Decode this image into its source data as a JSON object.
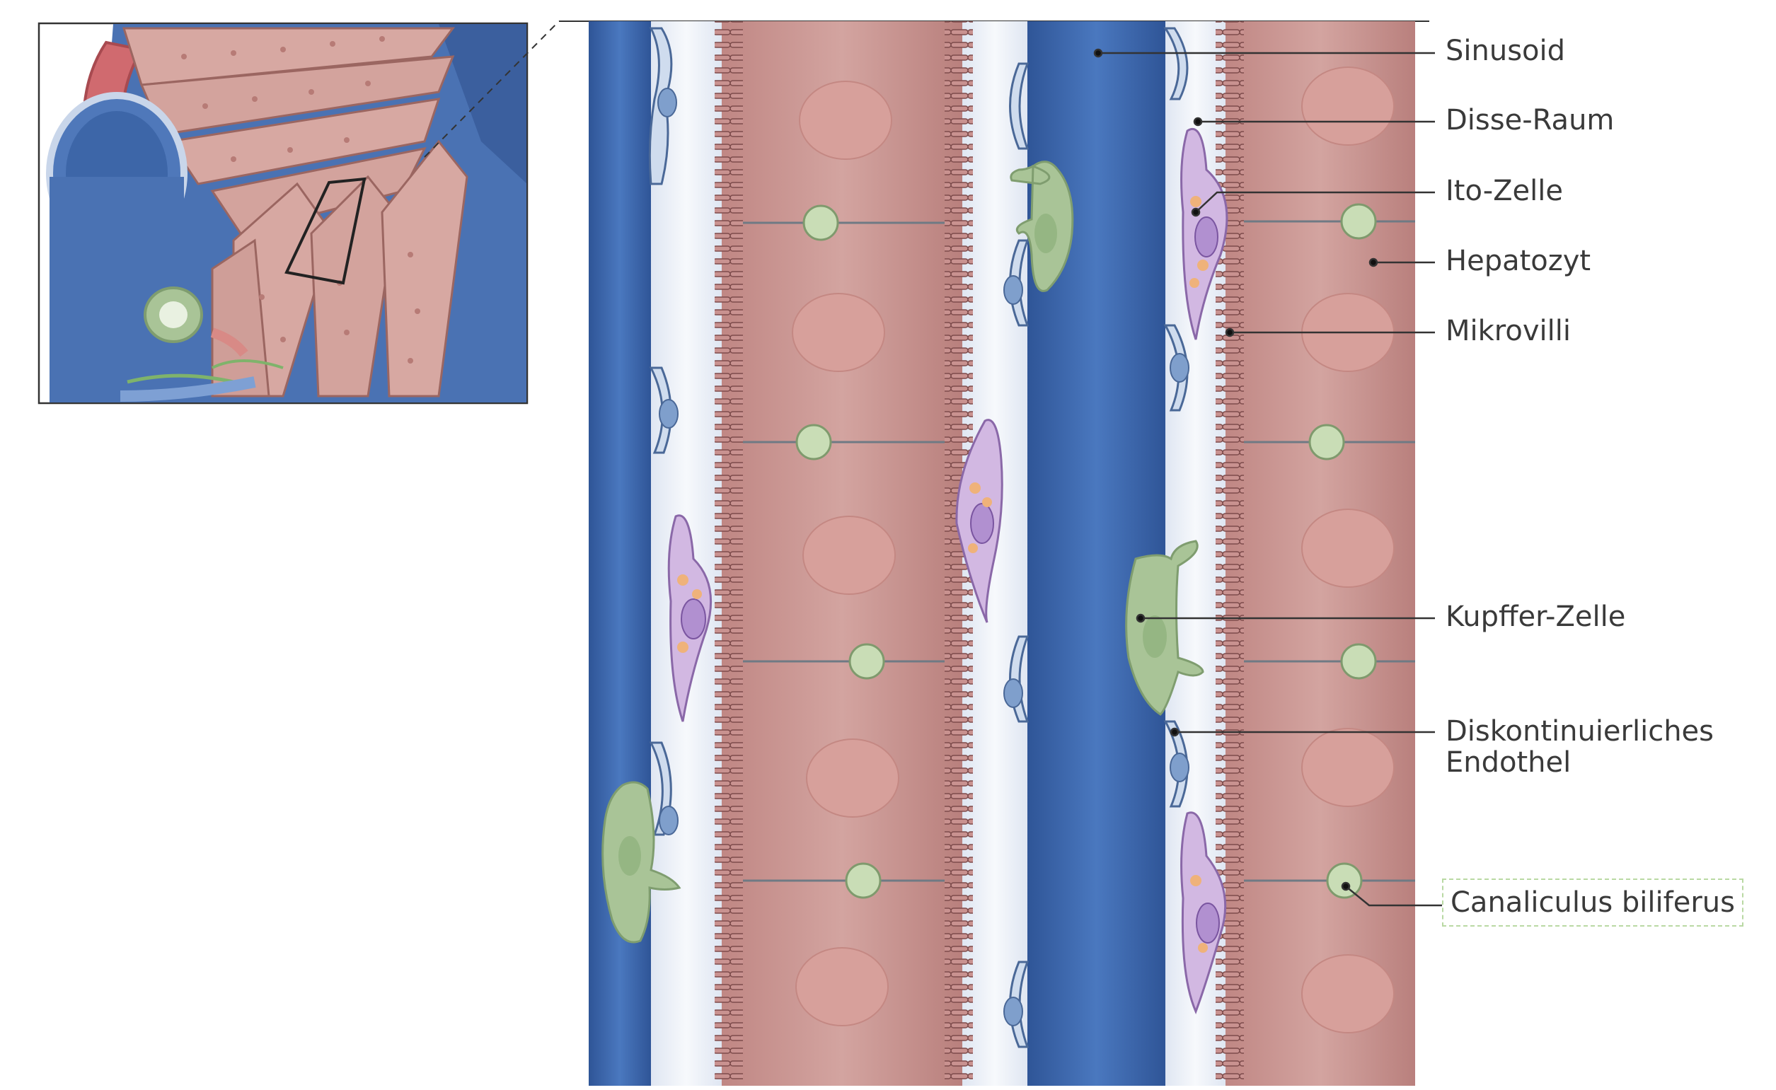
{
  "labels": {
    "sinusoid": "Sinusoid",
    "disse": "Disse-Raum",
    "ito": "Ito-Zelle",
    "hepatozyt": "Hepatozyt",
    "mikrovilli": "Mikrovilli",
    "kupffer": "Kupffer-Zelle",
    "endothel_line1": "Diskontinuierliches",
    "endothel_line2": "Endothel",
    "canaliculus": "Canaliculus biliferus"
  },
  "colors": {
    "sinusoid_blue": "#3d68ad",
    "hepatocyte": "#c99290",
    "endothelium": "#c8d6ea",
    "ito_cell": "#c6a8d8",
    "kupffer_cell": "#a9c497",
    "highlight_box": "#b9d9a3"
  }
}
